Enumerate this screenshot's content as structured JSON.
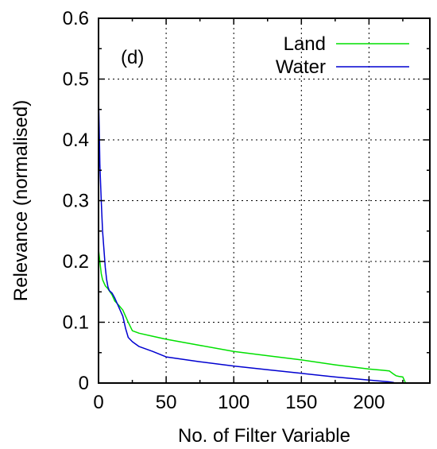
{
  "chart_data": {
    "type": "line",
    "annotation": "(d)",
    "xlabel": "No. of Filter Variable",
    "ylabel": "Relevance (normalised)",
    "xlim": [
      0,
      245
    ],
    "ylim": [
      0,
      0.6
    ],
    "xticks": [
      0,
      50,
      100,
      150,
      200
    ],
    "yticks": [
      0,
      0.1,
      0.2,
      0.3,
      0.4,
      0.5,
      0.6
    ],
    "xtick_labels": [
      "0",
      "50",
      "100",
      "150",
      "200"
    ],
    "ytick_labels": [
      "0",
      "0.1",
      "0.2",
      "0.3",
      "0.4",
      "0.5",
      "0.6"
    ],
    "grid": true,
    "legend_position": "top-right",
    "series": [
      {
        "name": "Land",
        "color": "#00e000",
        "x": [
          0,
          1,
          2,
          3,
          4,
          5,
          7,
          10,
          12,
          15,
          18,
          20,
          22,
          25,
          30,
          40,
          50,
          75,
          100,
          125,
          150,
          175,
          200,
          210,
          215,
          218,
          220,
          222,
          225,
          227
        ],
        "y": [
          0.22,
          0.2,
          0.18,
          0.17,
          0.165,
          0.16,
          0.155,
          0.145,
          0.135,
          0.128,
          0.12,
          0.11,
          0.1,
          0.086,
          0.082,
          0.077,
          0.072,
          0.062,
          0.052,
          0.045,
          0.038,
          0.03,
          0.023,
          0.021,
          0.02,
          0.015,
          0.012,
          0.011,
          0.01,
          0.0
        ]
      },
      {
        "name": "Water",
        "color": "#0000d0",
        "x": [
          0,
          0.5,
          1,
          2,
          3,
          4,
          5,
          6,
          7,
          8,
          10,
          12,
          15,
          18,
          20,
          22,
          25,
          30,
          40,
          50,
          75,
          100,
          125,
          150,
          175,
          200,
          210,
          215,
          218,
          219
        ],
        "y": [
          0.47,
          0.42,
          0.36,
          0.3,
          0.25,
          0.22,
          0.19,
          0.17,
          0.158,
          0.152,
          0.148,
          0.14,
          0.125,
          0.11,
          0.09,
          0.075,
          0.068,
          0.06,
          0.052,
          0.043,
          0.035,
          0.028,
          0.022,
          0.016,
          0.01,
          0.005,
          0.003,
          0.002,
          0.001,
          0.0
        ]
      }
    ]
  }
}
